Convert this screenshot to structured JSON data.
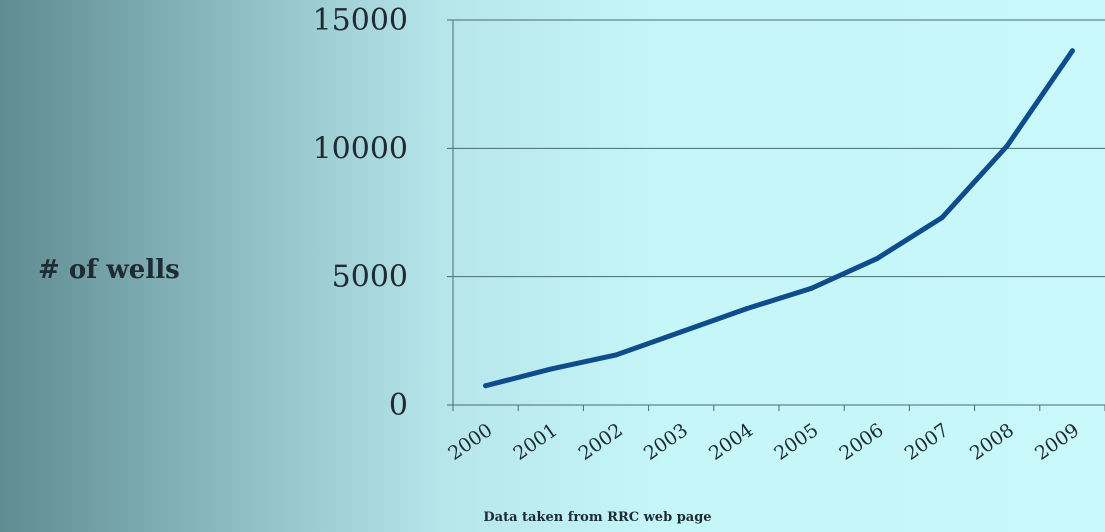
{
  "chart_data": {
    "type": "line",
    "ylabel": "# of wells",
    "xlabel": "",
    "caption": "Data taken from RRC web page",
    "ylim": [
      0,
      15000
    ],
    "yticks": [
      0,
      5000,
      10000,
      15000
    ],
    "grid": true,
    "categories": [
      "2000",
      "2001",
      "2002",
      "2003",
      "2004",
      "2005",
      "2006",
      "2007",
      "2008",
      "2009"
    ],
    "series": [
      {
        "values": [
          750,
          1400,
          1950,
          2850,
          3750,
          4550,
          5700,
          7300,
          10100,
          13800
        ]
      }
    ],
    "colors": {
      "line": "#0e4c8c",
      "grid": "#4d6a70",
      "text": "#1f2a33"
    }
  }
}
